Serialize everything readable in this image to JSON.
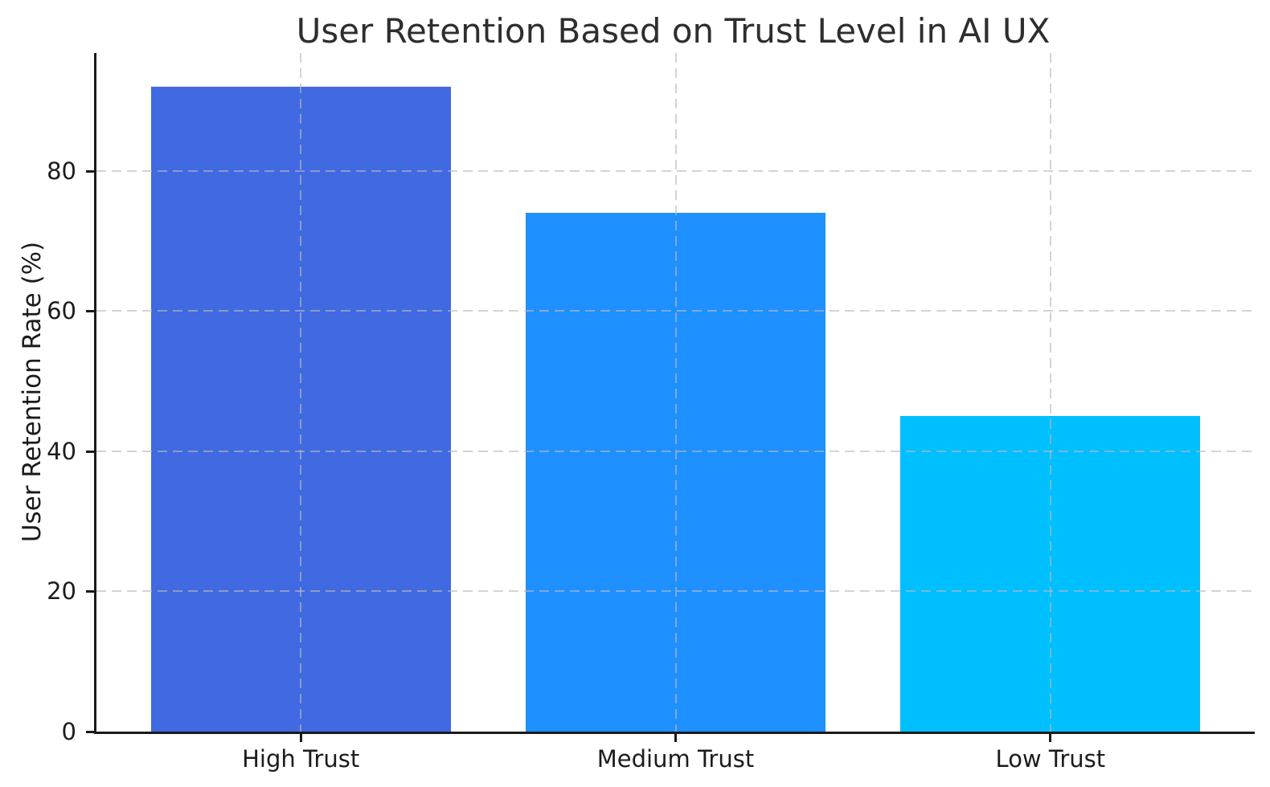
{
  "chart_data": {
    "type": "bar",
    "title": "User Retention Based on Trust Level in AI UX",
    "xlabel": "",
    "ylabel": "User Retention Rate (%)",
    "categories": [
      "High Trust",
      "Medium Trust",
      "Low Trust"
    ],
    "values": [
      92,
      74,
      45
    ],
    "bar_colors": [
      "#4169e1",
      "#1e90ff",
      "#00bfff"
    ],
    "yticks": [
      0,
      20,
      40,
      60,
      80
    ],
    "ylim": [
      0,
      96.8
    ],
    "xlim_pad": 0.545,
    "bar_width_fraction": 0.8,
    "grid": "dashed light-gray gridlines on both axes, drawn above bars",
    "grid_color": "#c8c8c8",
    "legend": "none",
    "background_color": "#ffffff",
    "spine_color": "#1a1a1a",
    "text_color": "#1c1c1c"
  }
}
